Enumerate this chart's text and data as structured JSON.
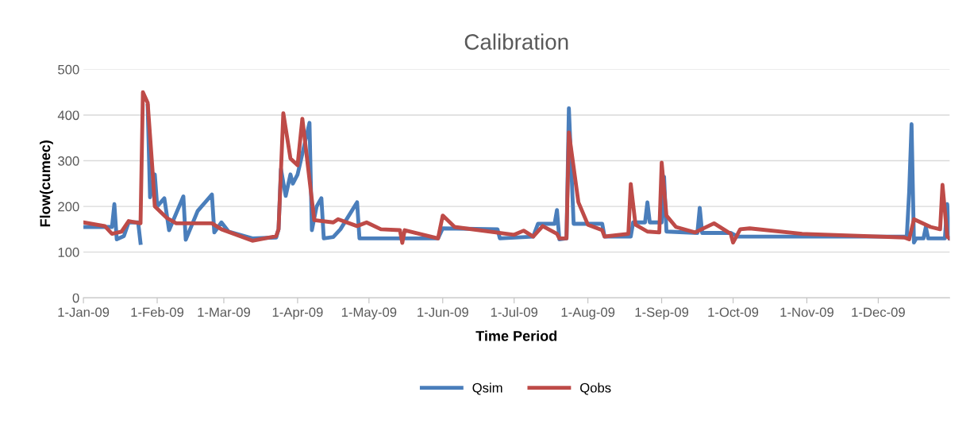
{
  "chart_data": {
    "type": "line",
    "title": "Calibration",
    "xlabel": "Time Period",
    "ylabel": "Flow(cumec)",
    "xlim": [
      "2009-01-01",
      "2009-12-31"
    ],
    "xticks": [
      {
        "value": "2009-01-01",
        "label": "1-Jan-09"
      },
      {
        "value": "2009-02-01",
        "label": "1-Feb-09"
      },
      {
        "value": "2009-03-01",
        "label": "1-Mar-09"
      },
      {
        "value": "2009-04-01",
        "label": "1-Apr-09"
      },
      {
        "value": "2009-05-01",
        "label": "1-May-09"
      },
      {
        "value": "2009-06-01",
        "label": "1-Jun-09"
      },
      {
        "value": "2009-07-01",
        "label": "1-Jul-09"
      },
      {
        "value": "2009-08-01",
        "label": "1-Aug-09"
      },
      {
        "value": "2009-09-01",
        "label": "1-Sep-09"
      },
      {
        "value": "2009-10-01",
        "label": "1-Oct-09"
      },
      {
        "value": "2009-11-01",
        "label": "1-Nov-09"
      },
      {
        "value": "2009-12-01",
        "label": "1-Dec-09"
      }
    ],
    "ylim": [
      0,
      500
    ],
    "yticks": [
      0,
      100,
      200,
      300,
      400,
      500
    ],
    "grid": "y",
    "legend": "bottom",
    "marker": "none",
    "line_style": "solid",
    "series": [
      {
        "name": "Qsim",
        "color": "#4a7ebb",
        "x": [
          "2009-01-01",
          "2009-01-13",
          "2009-01-14",
          "2009-01-15",
          "2009-01-18",
          "2009-01-20",
          "2009-01-24",
          "2009-01-25",
          "2009-01-26",
          "2009-01-28",
          "2009-01-29",
          "2009-01-31",
          "2009-02-01",
          "2009-02-04",
          "2009-02-06",
          "2009-02-12",
          "2009-02-13",
          "2009-02-18",
          "2009-02-24",
          "2009-02-25",
          "2009-02-28",
          "2009-03-03",
          "2009-03-13",
          "2009-03-23",
          "2009-03-24",
          "2009-03-25",
          "2009-03-27",
          "2009-03-29",
          "2009-03-30",
          "2009-04-01",
          "2009-04-06",
          "2009-04-07",
          "2009-04-09",
          "2009-04-11",
          "2009-04-12",
          "2009-04-16",
          "2009-04-19",
          "2009-04-26",
          "2009-04-27",
          "2009-05-30",
          "2009-06-01",
          "2009-06-24",
          "2009-06-25",
          "2009-07-09",
          "2009-07-11",
          "2009-07-18",
          "2009-07-19",
          "2009-07-20",
          "2009-07-23",
          "2009-07-24",
          "2009-07-26",
          "2009-08-07",
          "2009-08-08",
          "2009-08-19",
          "2009-08-20",
          "2009-08-25",
          "2009-08-26",
          "2009-08-27",
          "2009-09-01",
          "2009-09-02",
          "2009-09-03",
          "2009-09-16",
          "2009-09-17",
          "2009-09-18",
          "2009-09-30",
          "2009-10-03",
          "2009-12-13",
          "2009-12-14",
          "2009-12-15",
          "2009-12-16",
          "2009-12-17",
          "2009-12-20",
          "2009-12-21",
          "2009-12-22",
          "2009-12-29",
          "2009-12-30",
          "2009-12-31"
        ],
        "values": [
          155,
          155,
          205,
          128,
          135,
          165,
          165,
          120,
          null,
          420,
          220,
          270,
          200,
          218,
          148,
          222,
          127,
          190,
          226,
          143,
          165,
          145,
          130,
          132,
          150,
          282,
          223,
          270,
          250,
          270,
          383,
          148,
          200,
          218,
          130,
          133,
          150,
          209,
          130,
          130,
          152,
          150,
          130,
          134,
          162,
          162,
          192,
          128,
          130,
          415,
          162,
          162,
          134,
          134,
          165,
          165,
          209,
          165,
          165,
          265,
          145,
          142,
          197,
          142,
          142,
          134,
          134,
          232,
          380,
          121,
          130,
          130,
          155,
          130,
          130,
          205,
          130
        ]
      },
      {
        "name": "Qobs",
        "color": "#be4b48",
        "x": [
          "2009-01-01",
          "2009-01-10",
          "2009-01-13",
          "2009-01-17",
          "2009-01-20",
          "2009-01-25",
          "2009-01-26",
          "2009-01-28",
          "2009-01-30",
          "2009-01-31",
          "2009-02-05",
          "2009-02-09",
          "2009-02-24",
          "2009-02-28",
          "2009-03-13",
          "2009-03-23",
          "2009-03-24",
          "2009-03-26",
          "2009-03-29",
          "2009-04-01",
          "2009-04-03",
          "2009-04-08",
          "2009-04-16",
          "2009-04-18",
          "2009-04-26",
          "2009-04-30",
          "2009-05-06",
          "2009-05-14",
          "2009-05-15",
          "2009-05-16",
          "2009-05-30",
          "2009-06-01",
          "2009-06-06",
          "2009-07-01",
          "2009-07-05",
          "2009-07-09",
          "2009-07-13",
          "2009-07-19",
          "2009-07-20",
          "2009-07-23",
          "2009-07-24",
          "2009-07-28",
          "2009-08-01",
          "2009-08-07",
          "2009-08-08",
          "2009-08-18",
          "2009-08-19",
          "2009-08-21",
          "2009-08-26",
          "2009-08-31",
          "2009-09-01",
          "2009-09-03",
          "2009-09-07",
          "2009-09-15",
          "2009-09-23",
          "2009-09-30",
          "2009-10-01",
          "2009-10-04",
          "2009-10-08",
          "2009-10-30",
          "2009-12-12",
          "2009-12-14",
          "2009-12-16",
          "2009-12-23",
          "2009-12-27",
          "2009-12-28",
          "2009-12-30",
          "2009-12-31"
        ],
        "values": [
          165,
          157,
          140,
          145,
          168,
          163,
          450,
          427,
          282,
          200,
          175,
          163,
          163,
          150,
          125,
          135,
          150,
          404,
          305,
          290,
          392,
          170,
          165,
          172,
          157,
          165,
          150,
          148,
          120,
          148,
          130,
          180,
          155,
          138,
          147,
          134,
          157,
          140,
          130,
          130,
          362,
          209,
          160,
          148,
          134,
          140,
          249,
          160,
          145,
          143,
          296,
          180,
          155,
          143,
          163,
          140,
          121,
          150,
          152,
          140,
          132,
          128,
          172,
          155,
          150,
          247,
          134,
          130
        ]
      }
    ]
  }
}
